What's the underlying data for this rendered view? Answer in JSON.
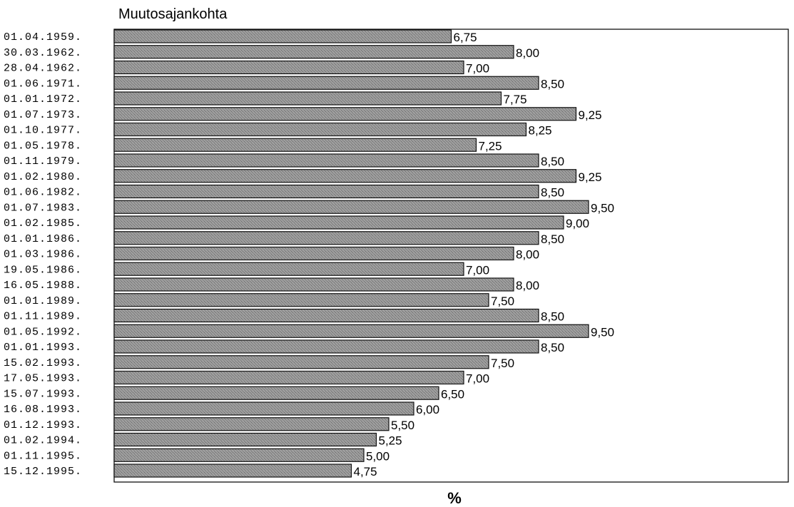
{
  "chart_data": {
    "type": "bar",
    "orientation": "horizontal",
    "title": "Muutosajankohta",
    "xlabel": "%",
    "ylabel": "",
    "categories": [
      "01.04.1959.",
      "30.03.1962.",
      "28.04.1962.",
      "01.06.1971.",
      "01.01.1972.",
      "01.07.1973.",
      "01.10.1977.",
      "01.05.1978.",
      "01.11.1979.",
      "01.02.1980.",
      "01.06.1982.",
      "01.07.1983.",
      "01.02.1985.",
      "01.01.1986.",
      "01.03.1986.",
      "19.05.1986.",
      "16.05.1988.",
      "01.01.1989.",
      "01.11.1989.",
      "01.05.1992.",
      "01.01.1993.",
      "15.02.1993.",
      "17.05.1993.",
      "15.07.1993.",
      "16.08.1993.",
      "01.12.1993.",
      "01.02.1994.",
      "01.11.1995.",
      "15.12.1995."
    ],
    "values": [
      6.75,
      8.0,
      7.0,
      8.5,
      7.75,
      9.25,
      8.25,
      7.25,
      8.5,
      9.25,
      8.5,
      9.5,
      9.0,
      8.5,
      8.0,
      7.0,
      8.0,
      7.5,
      8.5,
      9.5,
      8.5,
      7.5,
      7.0,
      6.5,
      6.0,
      5.5,
      5.25,
      5.0,
      4.75
    ],
    "value_labels": [
      "6,75",
      "8,00",
      "7,00",
      "8,50",
      "7,75",
      "9,25",
      "8,25",
      "7,25",
      "8,50",
      "9,25",
      "8,50",
      "9,50",
      "9,00",
      "8,50",
      "8,00",
      "7,00",
      "8,00",
      "7,50",
      "8,50",
      "9,50",
      "8,50",
      "7,50",
      "7,00",
      "6,50",
      "6,00",
      "5,50",
      "5,25",
      "5,00",
      "4,75"
    ],
    "xlim": [
      0,
      13.5
    ],
    "grid": false,
    "bar_color": "#8f8f8f",
    "bar_outline": "#111111"
  }
}
